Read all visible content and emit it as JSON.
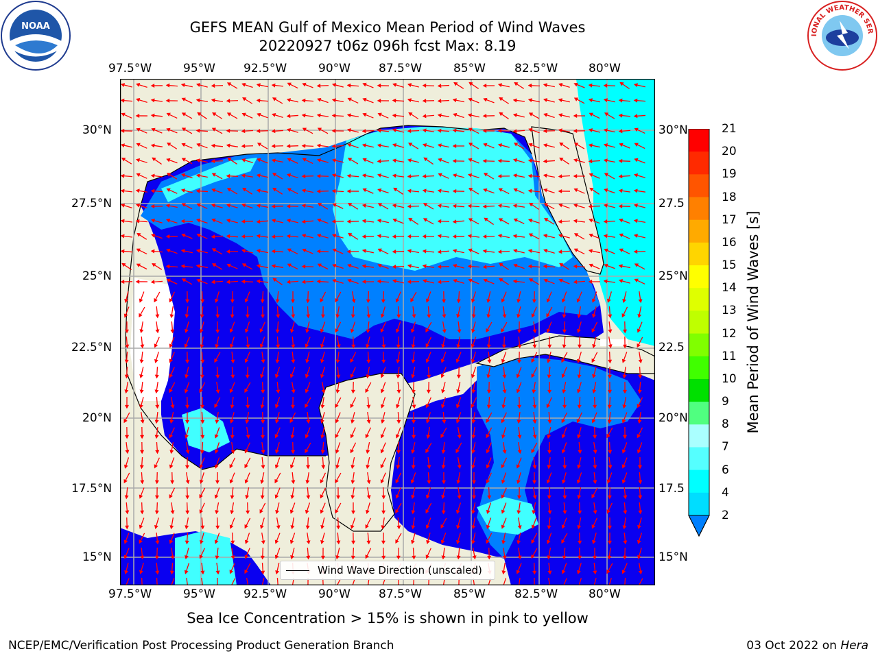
{
  "title_line1": "GEFS MEAN Gulf of Mexico Mean Period of Wind Waves",
  "title_line2": "20220927 t06z 096h fcst   Max: 8.19",
  "lon_ticks": [
    "97.5°W",
    "95°W",
    "92.5°W",
    "90°W",
    "87.5°W",
    "85°W",
    "82.5°W",
    "80°W"
  ],
  "lat_ticks_left": [
    "30°N",
    "27.5°N",
    "25°N",
    "22.5°N",
    "20°N",
    "17.5°N",
    "15°N"
  ],
  "lat_ticks_right": [
    "30°N",
    "27.5",
    "25°N",
    "22.5",
    "20°N",
    "17.5",
    "15°N"
  ],
  "legend_label": "Wind Wave Direction (unscaled)",
  "colorbar_title": "Mean Period of Wind Waves [s]",
  "colorbar_labels": [
    "21",
    "20",
    "19",
    "18",
    "17",
    "16",
    "15",
    "14",
    "13",
    "12",
    "11",
    "10",
    "9",
    "8",
    "7",
    "6",
    "4",
    "2"
  ],
  "colorbar_colors": [
    "#ff0000",
    "#ff2a00",
    "#ff5500",
    "#ff8000",
    "#ffaa00",
    "#ffd500",
    "#ffff00",
    "#dfff00",
    "#bfff00",
    "#80ff00",
    "#40ff00",
    "#00e000",
    "#50ff80",
    "#aaffff",
    "#55ffff",
    "#00ffff",
    "#00ddff",
    "#0080ff"
  ],
  "caption": "Sea Ice Concentration > 15% is shown in pink to yellow",
  "footer_left": "NCEP/EMC/Verification Post Processing Product Generation Branch",
  "footer_date": "03 Oct 2022 on",
  "footer_host": "Hera",
  "logos": {
    "left": "NOAA",
    "right": "NATIONAL WEATHER SERVICE"
  }
}
